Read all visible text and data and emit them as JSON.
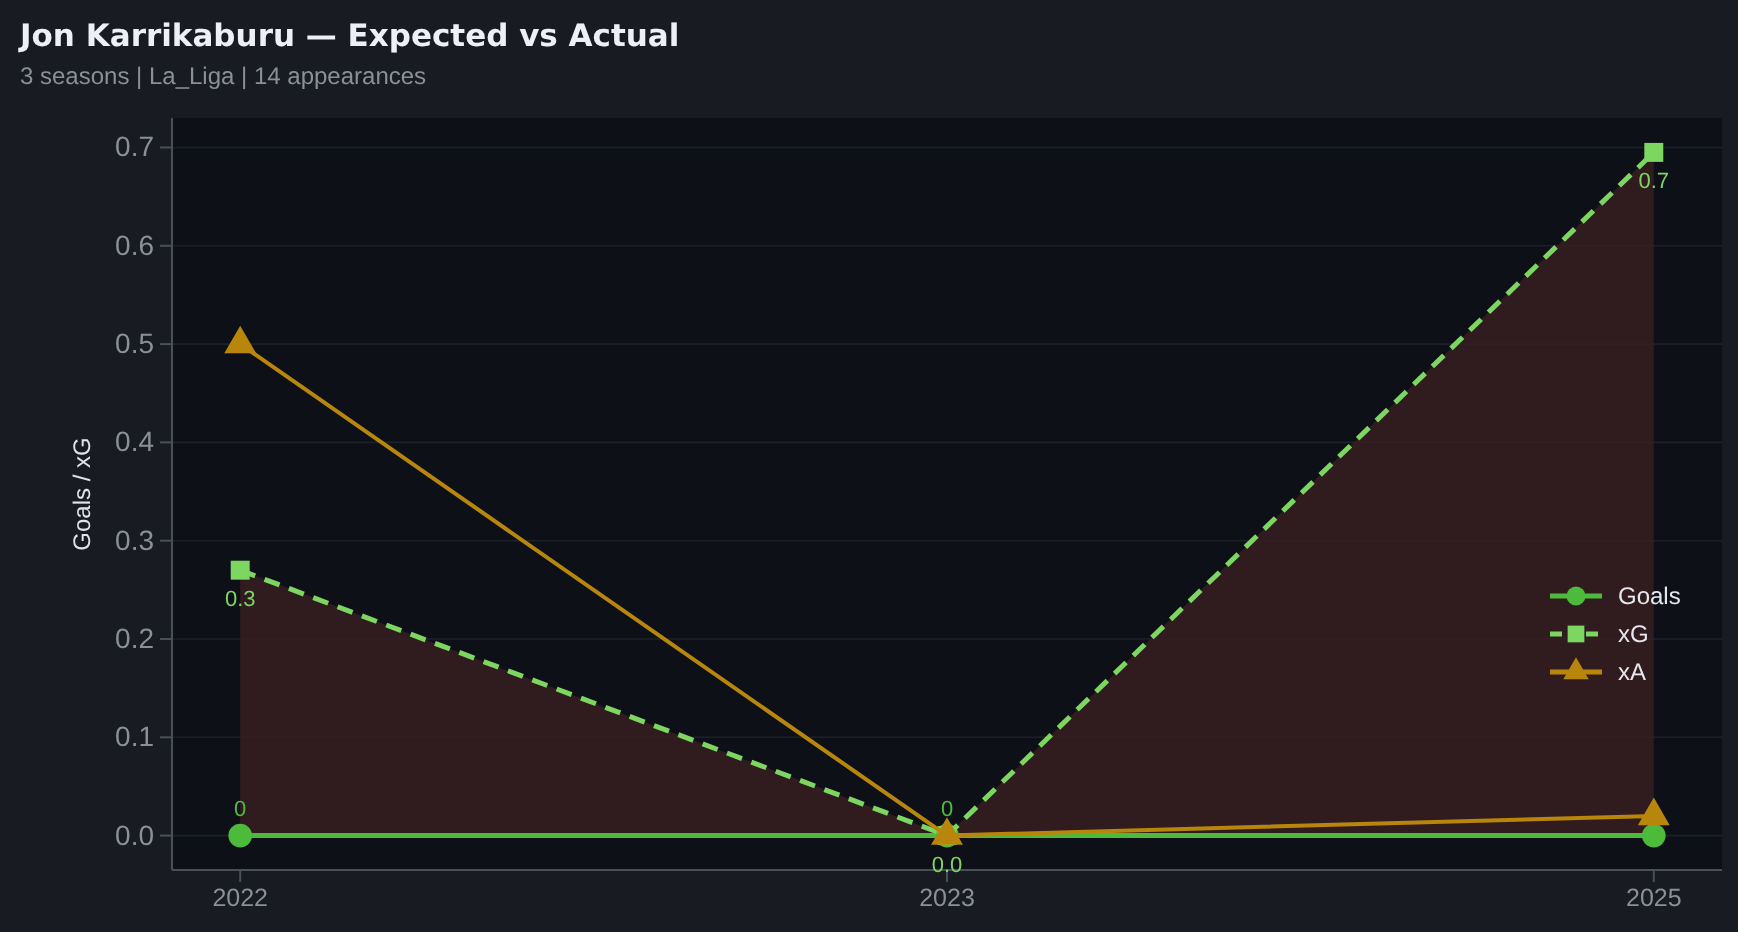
{
  "chart_data": {
    "type": "line",
    "title": "Jon Karrikaburu — Expected vs Actual",
    "subtitle": "3 seasons | La_Liga | 14 appearances",
    "ylabel": "Goals / xG",
    "categories": [
      "2022",
      "2023",
      "2025"
    ],
    "series": [
      {
        "name": "Goals",
        "color": "#4cbb3c",
        "values": [
          0,
          0,
          0
        ],
        "marker": "circle",
        "line_style": "solid",
        "value_labels": [
          "0",
          "0",
          null
        ]
      },
      {
        "name": "xG",
        "color": "#7dd660",
        "values": [
          0.27,
          0,
          0.695
        ],
        "marker": "square",
        "line_style": "dashed",
        "value_labels": [
          "0.3",
          "0.0",
          "0.7"
        ],
        "lower": [
          0,
          0,
          0
        ],
        "upper": [
          0.27,
          0,
          0.695
        ]
      },
      {
        "name": "xA",
        "color": "#b8860b",
        "values": [
          0.5,
          0,
          0.02
        ],
        "marker": "triangle",
        "line_style": "solid"
      }
    ],
    "ylim": [
      -0.035,
      0.73
    ],
    "yticks": [
      {
        "value": 0,
        "label": "0.0"
      },
      0.1,
      0.2,
      0.3,
      0.4,
      0.5,
      0.6,
      0.7
    ],
    "grid": "y",
    "legend": "bottom right"
  }
}
